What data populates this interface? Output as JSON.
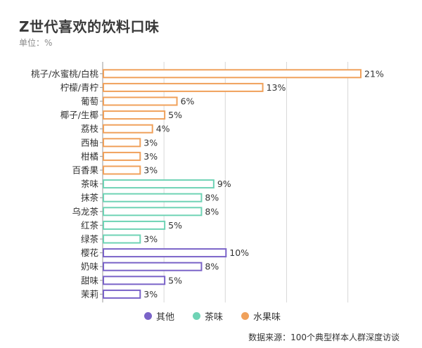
{
  "title": "Z世代喜欢的饮料口味",
  "unit": "单位：%",
  "source": "数据来源：100个典型样本人群深度访谈",
  "colors": {
    "fruit": "#F0A15B",
    "tea": "#6FD3B5",
    "other": "#7A63C8",
    "axis": "#9a9a9a",
    "grid": "#d8d8d8"
  },
  "legend": [
    {
      "label": "其他",
      "color": "#7A63C8"
    },
    {
      "label": "茶味",
      "color": "#6FD3B5"
    },
    {
      "label": "水果味",
      "color": "#F0A15B"
    }
  ],
  "chart_data": {
    "type": "bar",
    "orientation": "horizontal",
    "xlim": [
      0,
      22
    ],
    "grid": true,
    "categories": [
      "桃子/水蜜桃/白桃",
      "柠檬/青柠",
      "葡萄",
      "椰子/生椰",
      "荔枝",
      "西柚",
      "柑橘",
      "百香果",
      "茶味",
      "抹茶",
      "乌龙茶",
      "红茶",
      "绿茶",
      "樱花",
      "奶味",
      "甜味",
      "茉莉"
    ],
    "values": [
      21,
      13,
      6,
      5,
      4,
      3,
      3,
      3,
      9,
      8,
      8,
      5,
      3,
      10,
      8,
      5,
      3
    ],
    "value_labels": [
      "21%",
      "13%",
      "6%",
      "5%",
      "4%",
      "3%",
      "3%",
      "3%",
      "9%",
      "8%",
      "8%",
      "5%",
      "3%",
      "10%",
      "8%",
      "5%",
      "3%"
    ],
    "groups": [
      "水果味",
      "水果味",
      "水果味",
      "水果味",
      "水果味",
      "水果味",
      "水果味",
      "水果味",
      "茶味",
      "茶味",
      "茶味",
      "茶味",
      "茶味",
      "其他",
      "其他",
      "其他",
      "其他"
    ],
    "legend_position": "bottom"
  }
}
